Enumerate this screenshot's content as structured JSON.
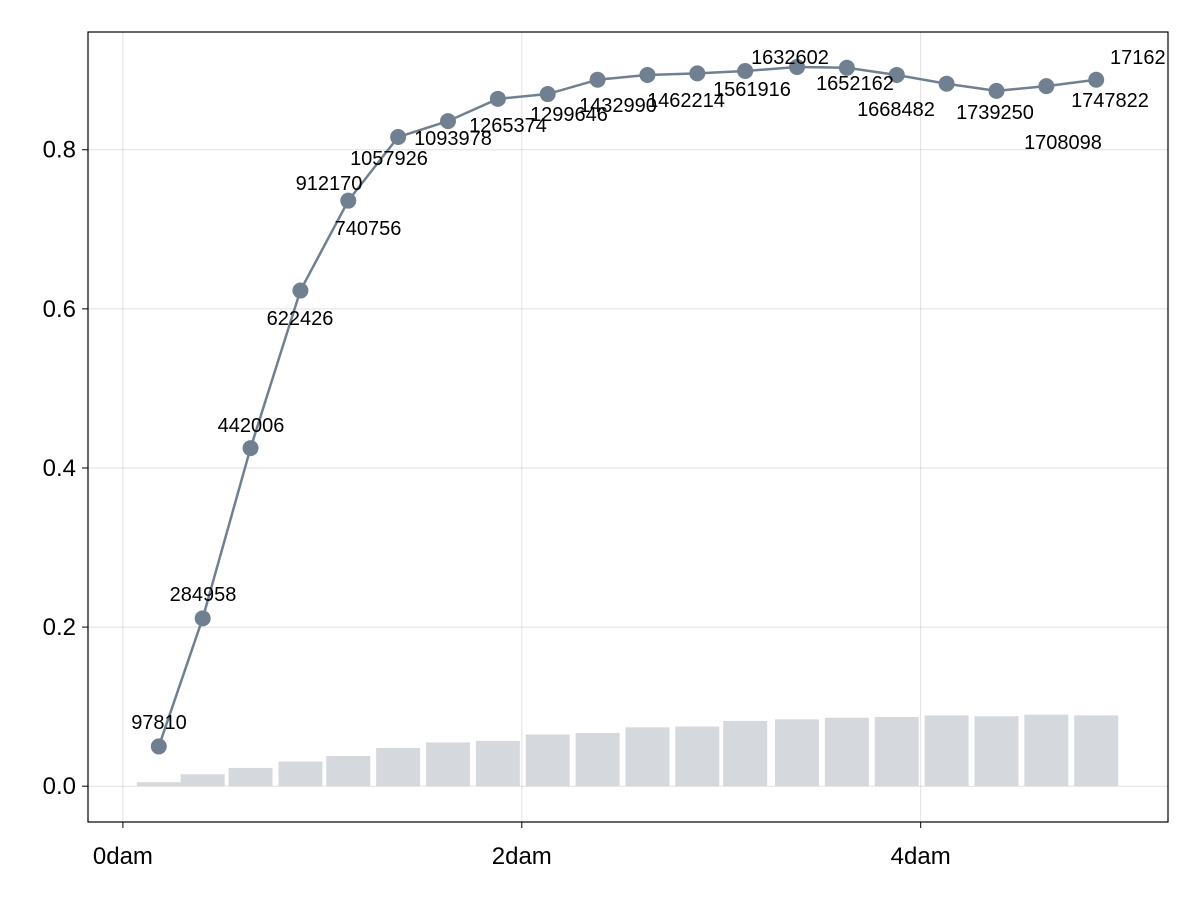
{
  "chart_data": {
    "type": "line+bar",
    "title": "",
    "xlabel": "",
    "ylabel": "",
    "xlim": [
      -0.175,
      5.24
    ],
    "ylim": [
      -0.045,
      0.948
    ],
    "x_unit": "dam",
    "x_ticks": [
      {
        "value": 0,
        "label": "0dam"
      },
      {
        "value": 2,
        "label": "2dam"
      },
      {
        "value": 4,
        "label": "4dam"
      }
    ],
    "y_ticks": [
      {
        "value": 0.0,
        "label": "0.0"
      },
      {
        "value": 0.2,
        "label": "0.2"
      },
      {
        "value": 0.4,
        "label": "0.4"
      },
      {
        "value": 0.6,
        "label": "0.6"
      },
      {
        "value": 0.8,
        "label": "0.8"
      }
    ],
    "grid": true,
    "x": [
      0.18,
      0.4,
      0.64,
      0.89,
      1.13,
      1.38,
      1.63,
      1.88,
      2.13,
      2.38,
      2.63,
      2.88,
      3.12,
      3.38,
      3.63,
      3.88,
      4.13,
      4.38,
      4.63,
      4.88
    ],
    "series": [
      {
        "name": "line",
        "type": "line",
        "color": "#708090",
        "values": [
          0.05,
          0.211,
          0.425,
          0.623,
          0.736,
          0.816,
          0.836,
          0.864,
          0.87,
          0.888,
          0.894,
          0.896,
          0.899,
          0.904,
          0.903,
          0.894,
          0.883,
          0.874,
          0.88,
          0.888
        ],
        "labels": [
          "97810",
          "284958",
          "442006",
          "622426",
          "740756",
          "912170",
          "1057926",
          "1093978",
          "1265374",
          "1299646",
          "1432990",
          "1462214",
          "1561916",
          "1632602",
          "1652162",
          "1668482",
          "1739250",
          "1708098",
          "1747822",
          "17162"
        ]
      },
      {
        "name": "bars",
        "type": "bar",
        "color": "#d5d9dd",
        "values": [
          0.005,
          0.015,
          0.023,
          0.031,
          0.038,
          0.048,
          0.055,
          0.057,
          0.065,
          0.067,
          0.074,
          0.075,
          0.082,
          0.084,
          0.086,
          0.087,
          0.089,
          0.088,
          0.09,
          0.089
        ]
      }
    ]
  }
}
